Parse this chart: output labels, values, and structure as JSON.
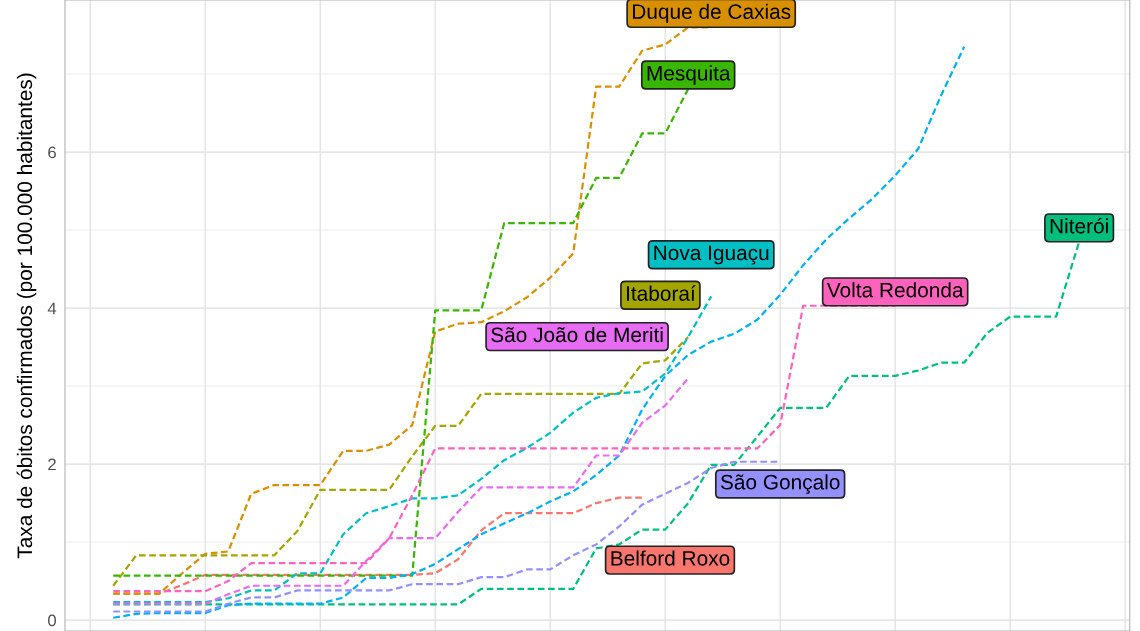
{
  "chart_data": {
    "type": "line",
    "ylabel": "Taxa de óbitos confirmados (por 100.000 habitantes)",
    "categories": [
      null,
      null,
      null,
      null,
      null,
      null,
      null,
      null,
      null,
      null,
      null,
      null,
      null,
      null,
      null,
      null,
      null,
      null,
      null,
      null,
      null,
      null,
      null,
      null,
      null,
      null,
      null,
      null,
      null,
      null,
      null,
      null,
      null,
      null,
      null,
      null,
      null,
      null,
      null,
      null,
      null,
      null,
      null,
      null,
      null,
      null
    ],
    "ylim": [
      -0.14,
      7.95
    ],
    "yticks": [
      0,
      2,
      4,
      6
    ],
    "grid": true,
    "line_style": "dashed",
    "series": [
      {
        "name": "Belford Roxo",
        "color": "#f8766d",
        "values": [
          null,
          0.34,
          0.34,
          0.34,
          0.45,
          0.58,
          0.58,
          0.58,
          0.58,
          0.58,
          0.58,
          0.58,
          0.58,
          0.58,
          0.58,
          0.6,
          0.78,
          1.15,
          1.37,
          1.37,
          1.37,
          1.37,
          1.5,
          1.57,
          1.57,
          null,
          null,
          null,
          null,
          null,
          null,
          null,
          null,
          null,
          null,
          null,
          null,
          null,
          null,
          null,
          null,
          null,
          null,
          null,
          null,
          null
        ]
      },
      {
        "name": "Duque de Caxias",
        "color": "#d89000",
        "values": [
          null,
          0.34,
          0.34,
          0.34,
          0.6,
          0.85,
          0.88,
          1.62,
          1.73,
          1.73,
          1.73,
          2.17,
          2.17,
          2.25,
          2.5,
          3.7,
          3.8,
          3.82,
          3.96,
          4.14,
          4.39,
          4.7,
          6.84,
          6.84,
          7.3,
          7.38,
          7.6,
          7.6,
          null,
          null,
          null,
          null,
          null,
          null,
          null,
          null,
          null,
          null,
          null,
          null,
          null,
          null,
          null,
          null,
          null,
          null
        ]
      },
      {
        "name": "Itaboraí",
        "color": "#a3a500",
        "values": [
          null,
          0.44,
          0.83,
          0.83,
          0.83,
          0.83,
          0.83,
          0.83,
          0.83,
          1.14,
          1.67,
          1.67,
          1.67,
          1.67,
          2.1,
          2.49,
          2.49,
          2.9,
          2.9,
          2.9,
          2.9,
          2.9,
          2.9,
          2.9,
          3.29,
          3.33,
          3.63,
          null,
          null,
          null,
          null,
          null,
          null,
          null,
          null,
          null,
          null,
          null,
          null,
          null,
          null,
          null,
          null,
          null,
          null,
          null
        ]
      },
      {
        "name": "Mesquita",
        "color": "#39b600",
        "values": [
          null,
          0.57,
          0.57,
          0.57,
          0.57,
          0.57,
          0.57,
          0.57,
          0.57,
          0.57,
          0.57,
          0.57,
          0.57,
          0.57,
          0.57,
          3.97,
          3.97,
          3.97,
          5.09,
          5.09,
          5.09,
          5.09,
          5.67,
          5.67,
          6.24,
          6.24,
          6.81,
          null,
          null,
          null,
          null,
          null,
          null,
          null,
          null,
          null,
          null,
          null,
          null,
          null,
          null,
          null,
          null,
          null,
          null,
          null
        ]
      },
      {
        "name": "Niterói",
        "color": "#00bf7d",
        "values": [
          null,
          0.2,
          0.2,
          0.2,
          0.2,
          0.2,
          0.2,
          0.2,
          0.2,
          0.2,
          0.2,
          0.2,
          0.2,
          0.2,
          0.2,
          0.2,
          0.2,
          0.4,
          0.4,
          0.4,
          0.4,
          0.4,
          0.92,
          0.97,
          1.16,
          1.16,
          1.5,
          1.99,
          1.99,
          2.35,
          2.72,
          2.72,
          2.72,
          3.13,
          3.13,
          3.13,
          3.2,
          3.3,
          3.3,
          3.68,
          3.89,
          3.89,
          3.89,
          4.85,
          null,
          null
        ]
      },
      {
        "name": "Nova Iguaçu",
        "color": "#00bfc4",
        "values": [
          null,
          0.23,
          0.23,
          0.23,
          0.23,
          0.23,
          0.28,
          0.38,
          0.38,
          0.6,
          0.6,
          1.1,
          1.37,
          1.46,
          1.56,
          1.56,
          1.6,
          1.81,
          2.05,
          2.21,
          2.4,
          2.66,
          2.85,
          2.91,
          2.93,
          3.16,
          3.63,
          4.15,
          null,
          null,
          null,
          null,
          null,
          null,
          null,
          null,
          null,
          null,
          null,
          null,
          null,
          null,
          null,
          null,
          null,
          null
        ]
      },
      {
        "color": "#00b0f6",
        "values": [
          null,
          0.03,
          0.08,
          0.09,
          0.09,
          0.09,
          0.19,
          0.21,
          0.21,
          0.21,
          0.21,
          0.29,
          0.54,
          0.54,
          0.59,
          0.72,
          0.91,
          1.1,
          1.24,
          1.37,
          1.52,
          1.65,
          1.86,
          2.11,
          2.7,
          3.13,
          3.4,
          3.57,
          3.67,
          3.85,
          4.17,
          4.55,
          4.88,
          5.15,
          5.4,
          5.7,
          6.04,
          6.73,
          7.35,
          null,
          null,
          null,
          null,
          null,
          null,
          null
        ]
      },
      {
        "name": "São Gonçalo",
        "color": "#9590ff",
        "values": [
          null,
          0.11,
          0.11,
          0.11,
          0.11,
          0.11,
          0.21,
          0.29,
          0.29,
          0.38,
          0.38,
          0.38,
          0.38,
          0.38,
          0.46,
          0.46,
          0.46,
          0.55,
          0.55,
          0.65,
          0.65,
          0.83,
          0.97,
          1.2,
          1.48,
          1.62,
          1.76,
          1.95,
          2.03,
          2.03,
          2.03,
          null,
          null,
          null,
          null,
          null,
          null,
          null,
          null,
          null,
          null,
          null,
          null,
          null,
          null,
          null
        ]
      },
      {
        "name": "São João de Meriti",
        "color": "#e76bf3",
        "values": [
          null,
          0.21,
          0.21,
          0.21,
          0.21,
          0.21,
          0.33,
          0.44,
          0.44,
          0.44,
          0.44,
          0.44,
          0.76,
          1.05,
          1.05,
          1.05,
          1.39,
          1.7,
          1.7,
          1.7,
          1.7,
          1.7,
          2.11,
          2.11,
          2.53,
          2.75,
          3.1,
          null,
          null,
          null,
          null,
          null,
          null,
          null,
          null,
          null,
          null,
          null,
          null,
          null,
          null,
          null,
          null,
          null,
          null,
          null
        ]
      },
      {
        "name": "Volta Redonda",
        "color": "#ff62bc",
        "values": [
          null,
          0.37,
          0.37,
          0.37,
          0.37,
          0.37,
          0.5,
          0.73,
          0.73,
          0.73,
          0.73,
          0.73,
          0.73,
          1.05,
          1.6,
          2.2,
          2.2,
          2.2,
          2.2,
          2.2,
          2.2,
          2.2,
          2.2,
          2.2,
          2.2,
          2.2,
          2.2,
          2.2,
          2.2,
          2.2,
          2.5,
          4.03,
          4.03,
          4.03,
          4.03,
          4.03,
          null,
          null,
          null,
          null,
          null,
          null,
          null,
          null,
          null,
          null
        ]
      }
    ]
  }
}
